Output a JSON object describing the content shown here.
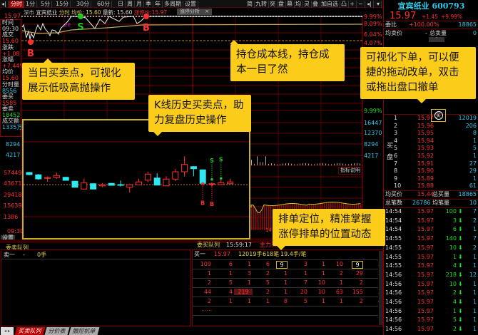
{
  "toolbar": {
    "tabs": [
      "分时",
      "1分",
      "5分",
      "15分",
      "30分",
      "60分",
      "日",
      "周",
      "月",
      "季",
      "年",
      "多周期",
      "设置"
    ],
    "active": "分时",
    "right_tools": [
      "简",
      "九转",
      "突",
      "盘",
      "幕",
      "均",
      "灵",
      "叠",
      "加自选",
      "凸",
      "+",
      "−"
    ],
    "collapse_icon": "collapse-left-icon",
    "menu_icon": "dropdown-icon"
  },
  "chart_header": {
    "market": "深市",
    "name": "宜宾纸业",
    "mode": "分时",
    "avg": "均价: 15.60",
    "last": "最新: 15.60",
    "limit": "涨停价:15.97",
    "analysis_tab": "涨停分析",
    "close": "×"
  },
  "left_info": {
    "top_price": "15.97",
    "rows": [
      {
        "label": "时间",
        "value": "09:30",
        "color": "white"
      },
      {
        "label": "成交",
        "value": "15.60",
        "color": "red"
      },
      {
        "label": "涨跌",
        "value": "+1.08",
        "color": "red"
      },
      {
        "label": "涨幅",
        "value": "+7.44%",
        "color": "red"
      },
      {
        "label": "均价",
        "value": "15.60",
        "color": "red"
      },
      {
        "label": "分时量",
        "value": "8556",
        "color": "cyan"
      },
      {
        "label": "委买",
        "value": "5585",
        "color": "red"
      },
      {
        "label": "委卖",
        "value": "18452",
        "color": "green"
      },
      {
        "label": "成交额",
        "value": "1335万",
        "color": "cyan"
      }
    ]
  },
  "left_axis": {
    "vol_top": [
      "8294",
      "4217"
    ],
    "vol_low": [
      "57449",
      "43671",
      "29418",
      "15639",
      "1386"
    ],
    "time": "09:30",
    "settings": "设置"
  },
  "right_axis": {
    "pct": [
      "9.99%",
      "8.09%",
      "6.04%",
      "4.07%"
    ],
    "lower": [
      "9.99%",
      "16447",
      "12370",
      "8294",
      "4217"
    ]
  },
  "intraday": {
    "markers": [
      {
        "type": "B",
        "color": "#ff3030"
      },
      {
        "type": "S",
        "color": "#1ec81e"
      },
      {
        "type": "B",
        "color": "#ff3030"
      }
    ],
    "legend_tag": "26"
  },
  "indicator_button": "指标说明",
  "kline": {
    "baseline": 15.6,
    "candles": [
      [
        16.28,
        16.32,
        16.13,
        16.16
      ],
      [
        16.15,
        16.2,
        15.87,
        15.92
      ],
      [
        15.95,
        16.07,
        15.76,
        15.99
      ],
      [
        15.99,
        16.27,
        15.92,
        16.11
      ],
      [
        16.01,
        16.03,
        15.82,
        15.84
      ],
      [
        15.79,
        15.81,
        15.43,
        15.45
      ],
      [
        15.35,
        15.93,
        15.35,
        15.71
      ],
      [
        15.65,
        15.69,
        15.33,
        15.35
      ],
      [
        15.53,
        15.69,
        15.45,
        15.59
      ],
      [
        15.67,
        15.69,
        15.55,
        15.56
      ],
      [
        15.6,
        15.83,
        15.49,
        15.56
      ],
      [
        15.45,
        15.59,
        15.15,
        15.59
      ],
      [
        15.59,
        15.93,
        15.59,
        15.75
      ],
      [
        15.85,
        16.33,
        15.73,
        16.19
      ],
      [
        15.97,
        16.24,
        15.57,
        15.57
      ],
      [
        15.53,
        16.07,
        15.53,
        15.91
      ],
      [
        15.91,
        16.48,
        15.79,
        16.32
      ],
      [
        16.32,
        17.19,
        16.05,
        16.73
      ],
      [
        16.61,
        16.63,
        16.07,
        16.49
      ],
      [
        16.43,
        16.45,
        15.65,
        15.67
      ],
      [
        15.61,
        15.73,
        15.43,
        15.65
      ],
      [
        15.6,
        15.96,
        15.58,
        15.71
      ],
      [
        15.65,
        15.93,
        15.63,
        15.75
      ]
    ],
    "signals": [
      {
        "index": 19,
        "type": "B"
      },
      {
        "index": 20,
        "type": "S"
      },
      {
        "index": 20,
        "type": "B"
      },
      {
        "index": 21,
        "type": "S"
      }
    ]
  },
  "callouts": {
    "intraday": "当日买卖点，可视化\n展示低吸高抛操作",
    "kline": "K线历史买卖点，助\n力复盘历史操作",
    "cost": "持仓成本线，持仓成\n本一目了然",
    "order": "可视化下单，可以便\n捷的拖动改单，双击\n或拖出盘口撤单",
    "queue": "排单定位，精准掌握\n涨停排单的位置动态"
  },
  "quote": {
    "title": "宜宾纸业 600793",
    "price": "15.97",
    "change": "+1.45",
    "pct": "+9.99%",
    "wb_label": "委比",
    "wb_value": "+100.00%",
    "wb_qty": "18865",
    "avg_sell_label": "均卖价",
    "avg_sell": "-",
    "total_sell_label": "总卖量",
    "total_sell": "0",
    "buy_icon": "买",
    "buy_side_label": [
      "买",
      "盘"
    ],
    "bids": [
      [
        "1",
        "15.97",
        "12019"
      ],
      [
        "2",
        "15.96",
        "206"
      ],
      [
        "3",
        "15.95",
        "8"
      ],
      [
        "4",
        "15.94",
        "1"
      ],
      [
        "5",
        "15.93",
        "5"
      ],
      [
        "6",
        "15.92",
        "1"
      ],
      [
        "7",
        "15.91",
        "27"
      ],
      [
        "8",
        "15.90",
        "29"
      ],
      [
        "9",
        "15.89",
        "1"
      ],
      [
        "10",
        "15.88",
        "61"
      ]
    ],
    "avg_buy_label": "均买价",
    "avg_buy": "15.44",
    "total_buy_label": "总买量",
    "total_buy": "18865",
    "count_label": "总笔数",
    "count": "26786",
    "avg_lot_label": "均笔量",
    "avg_lot": "10"
  },
  "ticks": [
    [
      "14:54",
      "15.97",
      "100",
      "7"
    ],
    [
      "14:54",
      "15.97",
      "3",
      "2"
    ],
    [
      "14:54",
      "15.97",
      "6",
      "1"
    ],
    [
      "14:55",
      "15.97",
      "140",
      "7"
    ],
    [
      "14:55",
      "15.97",
      "10",
      "2"
    ],
    [
      "14:55",
      "15.97",
      "1",
      "1"
    ],
    [
      "14:55",
      "15.97",
      "4",
      "1"
    ],
    [
      "14:56",
      "15.97",
      "218",
      "12"
    ],
    [
      "14:56",
      "15.97",
      "10",
      "1"
    ],
    [
      "14:56",
      "15.97",
      "2",
      "1"
    ],
    [
      "14:56",
      "15.97",
      "4",
      "1"
    ],
    [
      "14:56",
      "15.97",
      "1",
      "1"
    ],
    [
      "14:56",
      "15.97",
      "5",
      "1"
    ],
    [
      "14:56",
      "15.97",
      "2",
      "1"
    ]
  ],
  "sell_queue": {
    "title": "委卖队列",
    "level": "卖一",
    "price": "-",
    "qty": "0手"
  },
  "buy_queue": {
    "title": "委买队列",
    "time": "15:59:17",
    "extra": "主力买",
    "level": "买一",
    "price": "15.97",
    "qty": "12019手",
    "orders": "618笔",
    "avg": "19.4手/笔",
    "rows": [
      [
        "109",
        "6",
        "1",
        "6",
        "9",
        "3",
        "1",
        "10",
        "9",
        "2"
      ],
      [
        "1",
        "1",
        "3",
        "2",
        "1",
        "1",
        "1",
        "2",
        "29",
        "3"
      ],
      [
        "2",
        "5",
        "1",
        "5",
        "1",
        "7",
        "10",
        "1",
        "2",
        "1"
      ],
      [
        "44",
        "4",
        "219",
        "2",
        "1",
        "20",
        "10",
        "63",
        "155",
        "2"
      ],
      [
        "2",
        "1",
        "1",
        "1",
        "8",
        "5",
        "1",
        "1",
        "2",
        "4"
      ]
    ],
    "more": "......",
    "selected": "9",
    "highlighted": "219"
  },
  "bottom_tabs": [
    "买卖队列",
    "分价表",
    "撤控机单"
  ],
  "colors": {
    "up": "#ff3030",
    "down": "#2ee8f0",
    "grid": "#700000",
    "callout": "#fbcd1a",
    "avg_line": "#b8a860"
  }
}
